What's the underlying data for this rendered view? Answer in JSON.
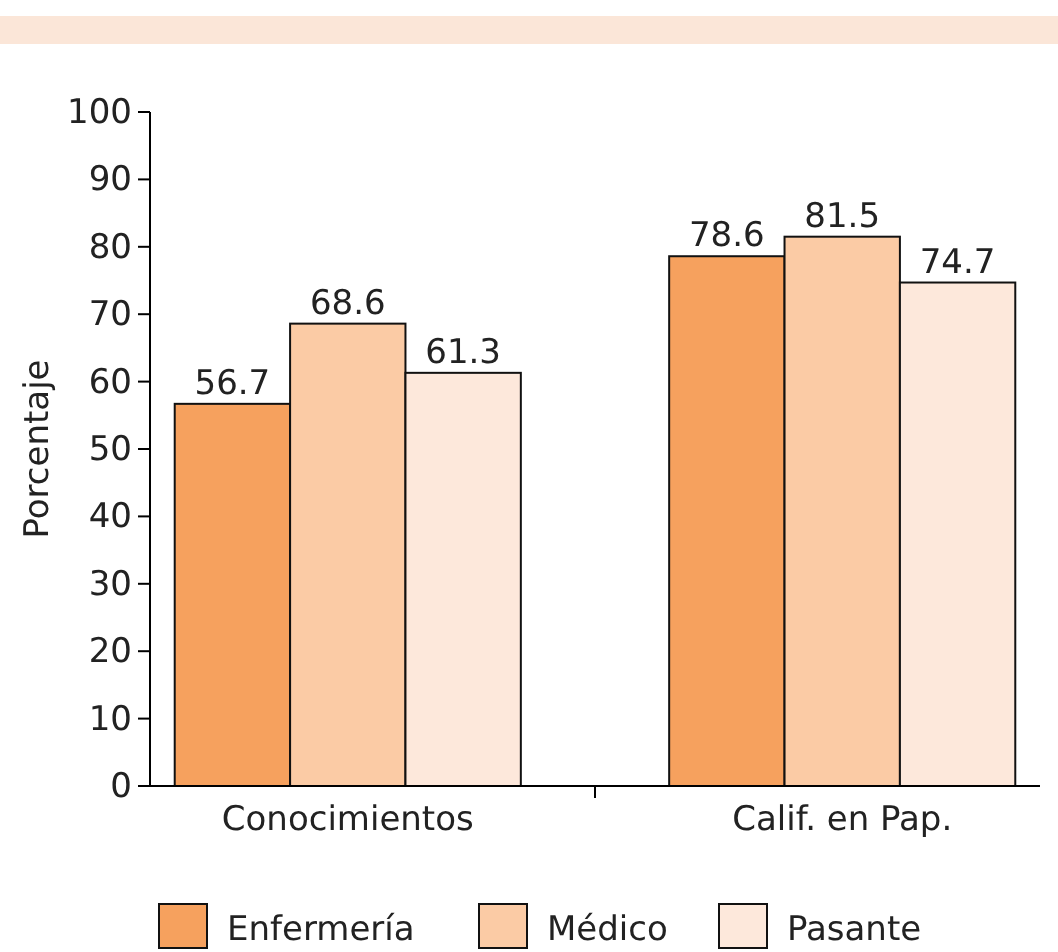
{
  "chart_data": {
    "type": "bar",
    "ylabel": "Porcentaje",
    "categories": [
      "Conocimientos",
      "Calif. en Pap."
    ],
    "series": [
      {
        "name": "Enfermería",
        "color": "#f6a15e",
        "values": [
          56.7,
          78.6
        ]
      },
      {
        "name": "Médico",
        "color": "#fbcba5",
        "values": [
          68.6,
          81.5
        ]
      },
      {
        "name": "Pasante",
        "color": "#fde8db",
        "values": [
          61.3,
          74.7
        ]
      }
    ],
    "ylim": [
      0,
      100
    ],
    "yticks": [
      0,
      10,
      20,
      30,
      40,
      50,
      60,
      70,
      80,
      90,
      100
    ],
    "data_labels": true,
    "legend": "bottom",
    "grid": false
  }
}
